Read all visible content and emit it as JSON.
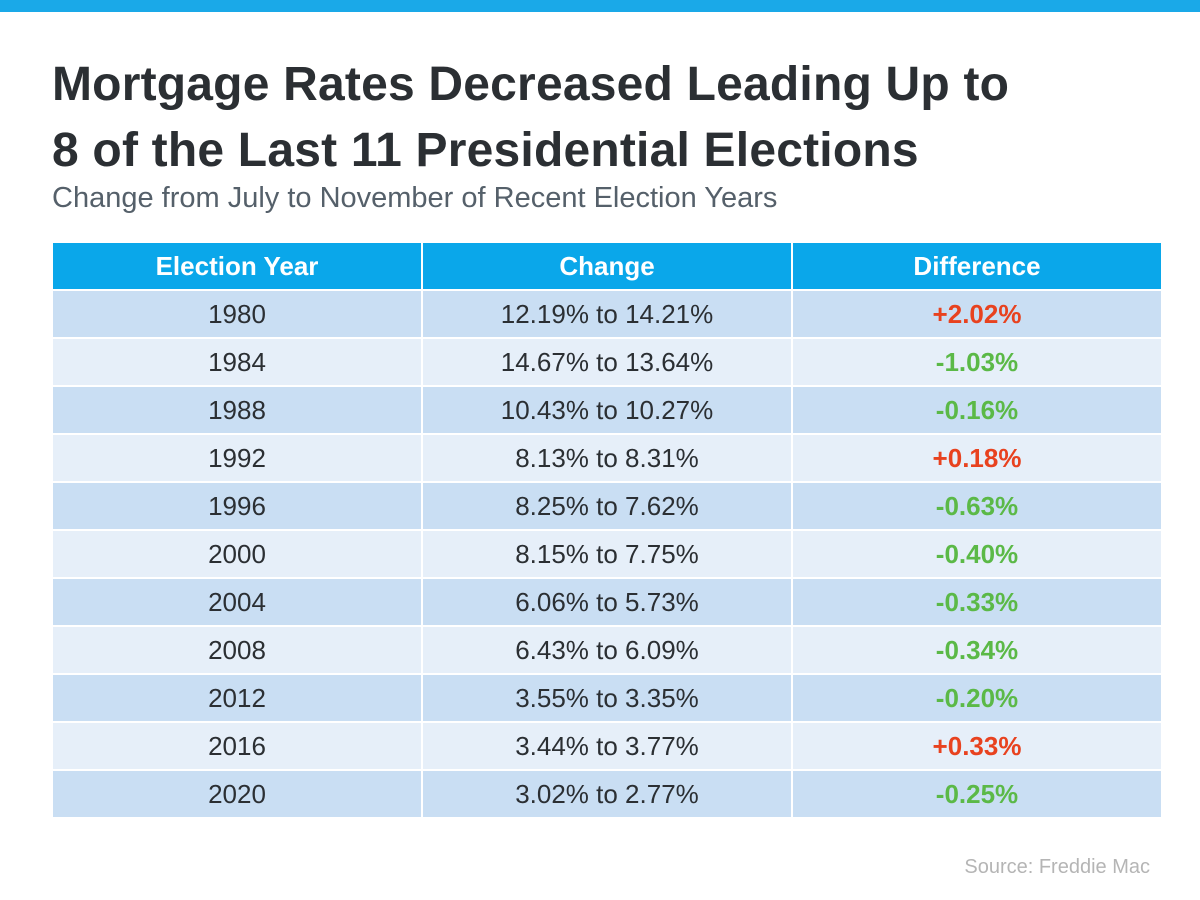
{
  "title_line1": "Mortgage Rates Decreased Leading Up to",
  "title_line2": "8 of the Last 11 Presidential Elections",
  "subtitle": "Change from July to November of Recent Election Years",
  "source": "Source: Freddie Mac",
  "colors": {
    "header": "#0aa7ea",
    "increase": "#e8421f",
    "decrease": "#5bb947",
    "row_dark": "#c9def3",
    "row_light": "#e6eff9"
  },
  "chart_data": {
    "type": "table",
    "title": "Mortgage Rates Decreased Leading Up to 8 of the Last 11 Presidential Elections",
    "subtitle": "Change from July to November of Recent Election Years",
    "columns": [
      "Election Year",
      "Change",
      "Difference"
    ],
    "rows": [
      {
        "year": "1980",
        "change": "12.19% to 14.21%",
        "difference": "+2.02%",
        "direction": "up"
      },
      {
        "year": "1984",
        "change": "14.67% to 13.64%",
        "difference": "-1.03%",
        "direction": "down"
      },
      {
        "year": "1988",
        "change": "10.43% to 10.27%",
        "difference": "-0.16%",
        "direction": "down"
      },
      {
        "year": "1992",
        "change": "8.13% to 8.31%",
        "difference": "+0.18%",
        "direction": "up"
      },
      {
        "year": "1996",
        "change": "8.25% to 7.62%",
        "difference": "-0.63%",
        "direction": "down"
      },
      {
        "year": "2000",
        "change": "8.15% to 7.75%",
        "difference": "-0.40%",
        "direction": "down"
      },
      {
        "year": "2004",
        "change": "6.06% to 5.73%",
        "difference": "-0.33%",
        "direction": "down"
      },
      {
        "year": "2008",
        "change": "6.43% to 6.09%",
        "difference": "-0.34%",
        "direction": "down"
      },
      {
        "year": "2012",
        "change": "3.55% to 3.35%",
        "difference": "-0.20%",
        "direction": "down"
      },
      {
        "year": "2016",
        "change": "3.44% to 3.77%",
        "difference": "+0.33%",
        "direction": "up"
      },
      {
        "year": "2020",
        "change": "3.02% to 2.77%",
        "difference": "-0.25%",
        "direction": "down"
      }
    ]
  }
}
